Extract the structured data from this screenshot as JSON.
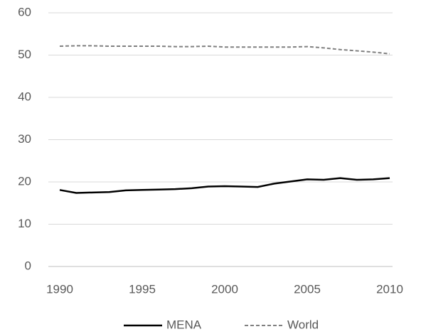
{
  "chart_data": {
    "type": "line",
    "x": [
      1990,
      1991,
      1992,
      1993,
      1994,
      1995,
      1996,
      1997,
      1998,
      1999,
      2000,
      2001,
      2002,
      2003,
      2004,
      2005,
      2006,
      2007,
      2008,
      2009,
      2010
    ],
    "series": [
      {
        "name": "MENA",
        "color": "#000000",
        "dash": false,
        "values": [
          18.1,
          17.4,
          17.5,
          17.6,
          18.0,
          18.1,
          18.2,
          18.3,
          18.5,
          18.9,
          19.0,
          18.9,
          18.8,
          19.6,
          20.1,
          20.6,
          20.5,
          20.9,
          20.5,
          20.6,
          20.9
        ]
      },
      {
        "name": "World",
        "color": "#808080",
        "dash": true,
        "values": [
          52.1,
          52.2,
          52.2,
          52.1,
          52.1,
          52.1,
          52.1,
          52.0,
          52.0,
          52.1,
          51.9,
          51.9,
          51.9,
          51.9,
          51.9,
          52.0,
          51.7,
          51.3,
          51.0,
          50.7,
          50.3
        ]
      }
    ],
    "xlim": [
      1990,
      2010
    ],
    "xticks": [
      1990,
      1995,
      2000,
      2005,
      2010
    ],
    "ylim": [
      0,
      60
    ],
    "yticks": [
      0,
      10,
      20,
      30,
      40,
      50,
      60
    ],
    "grid": true,
    "legend": "bottom"
  }
}
